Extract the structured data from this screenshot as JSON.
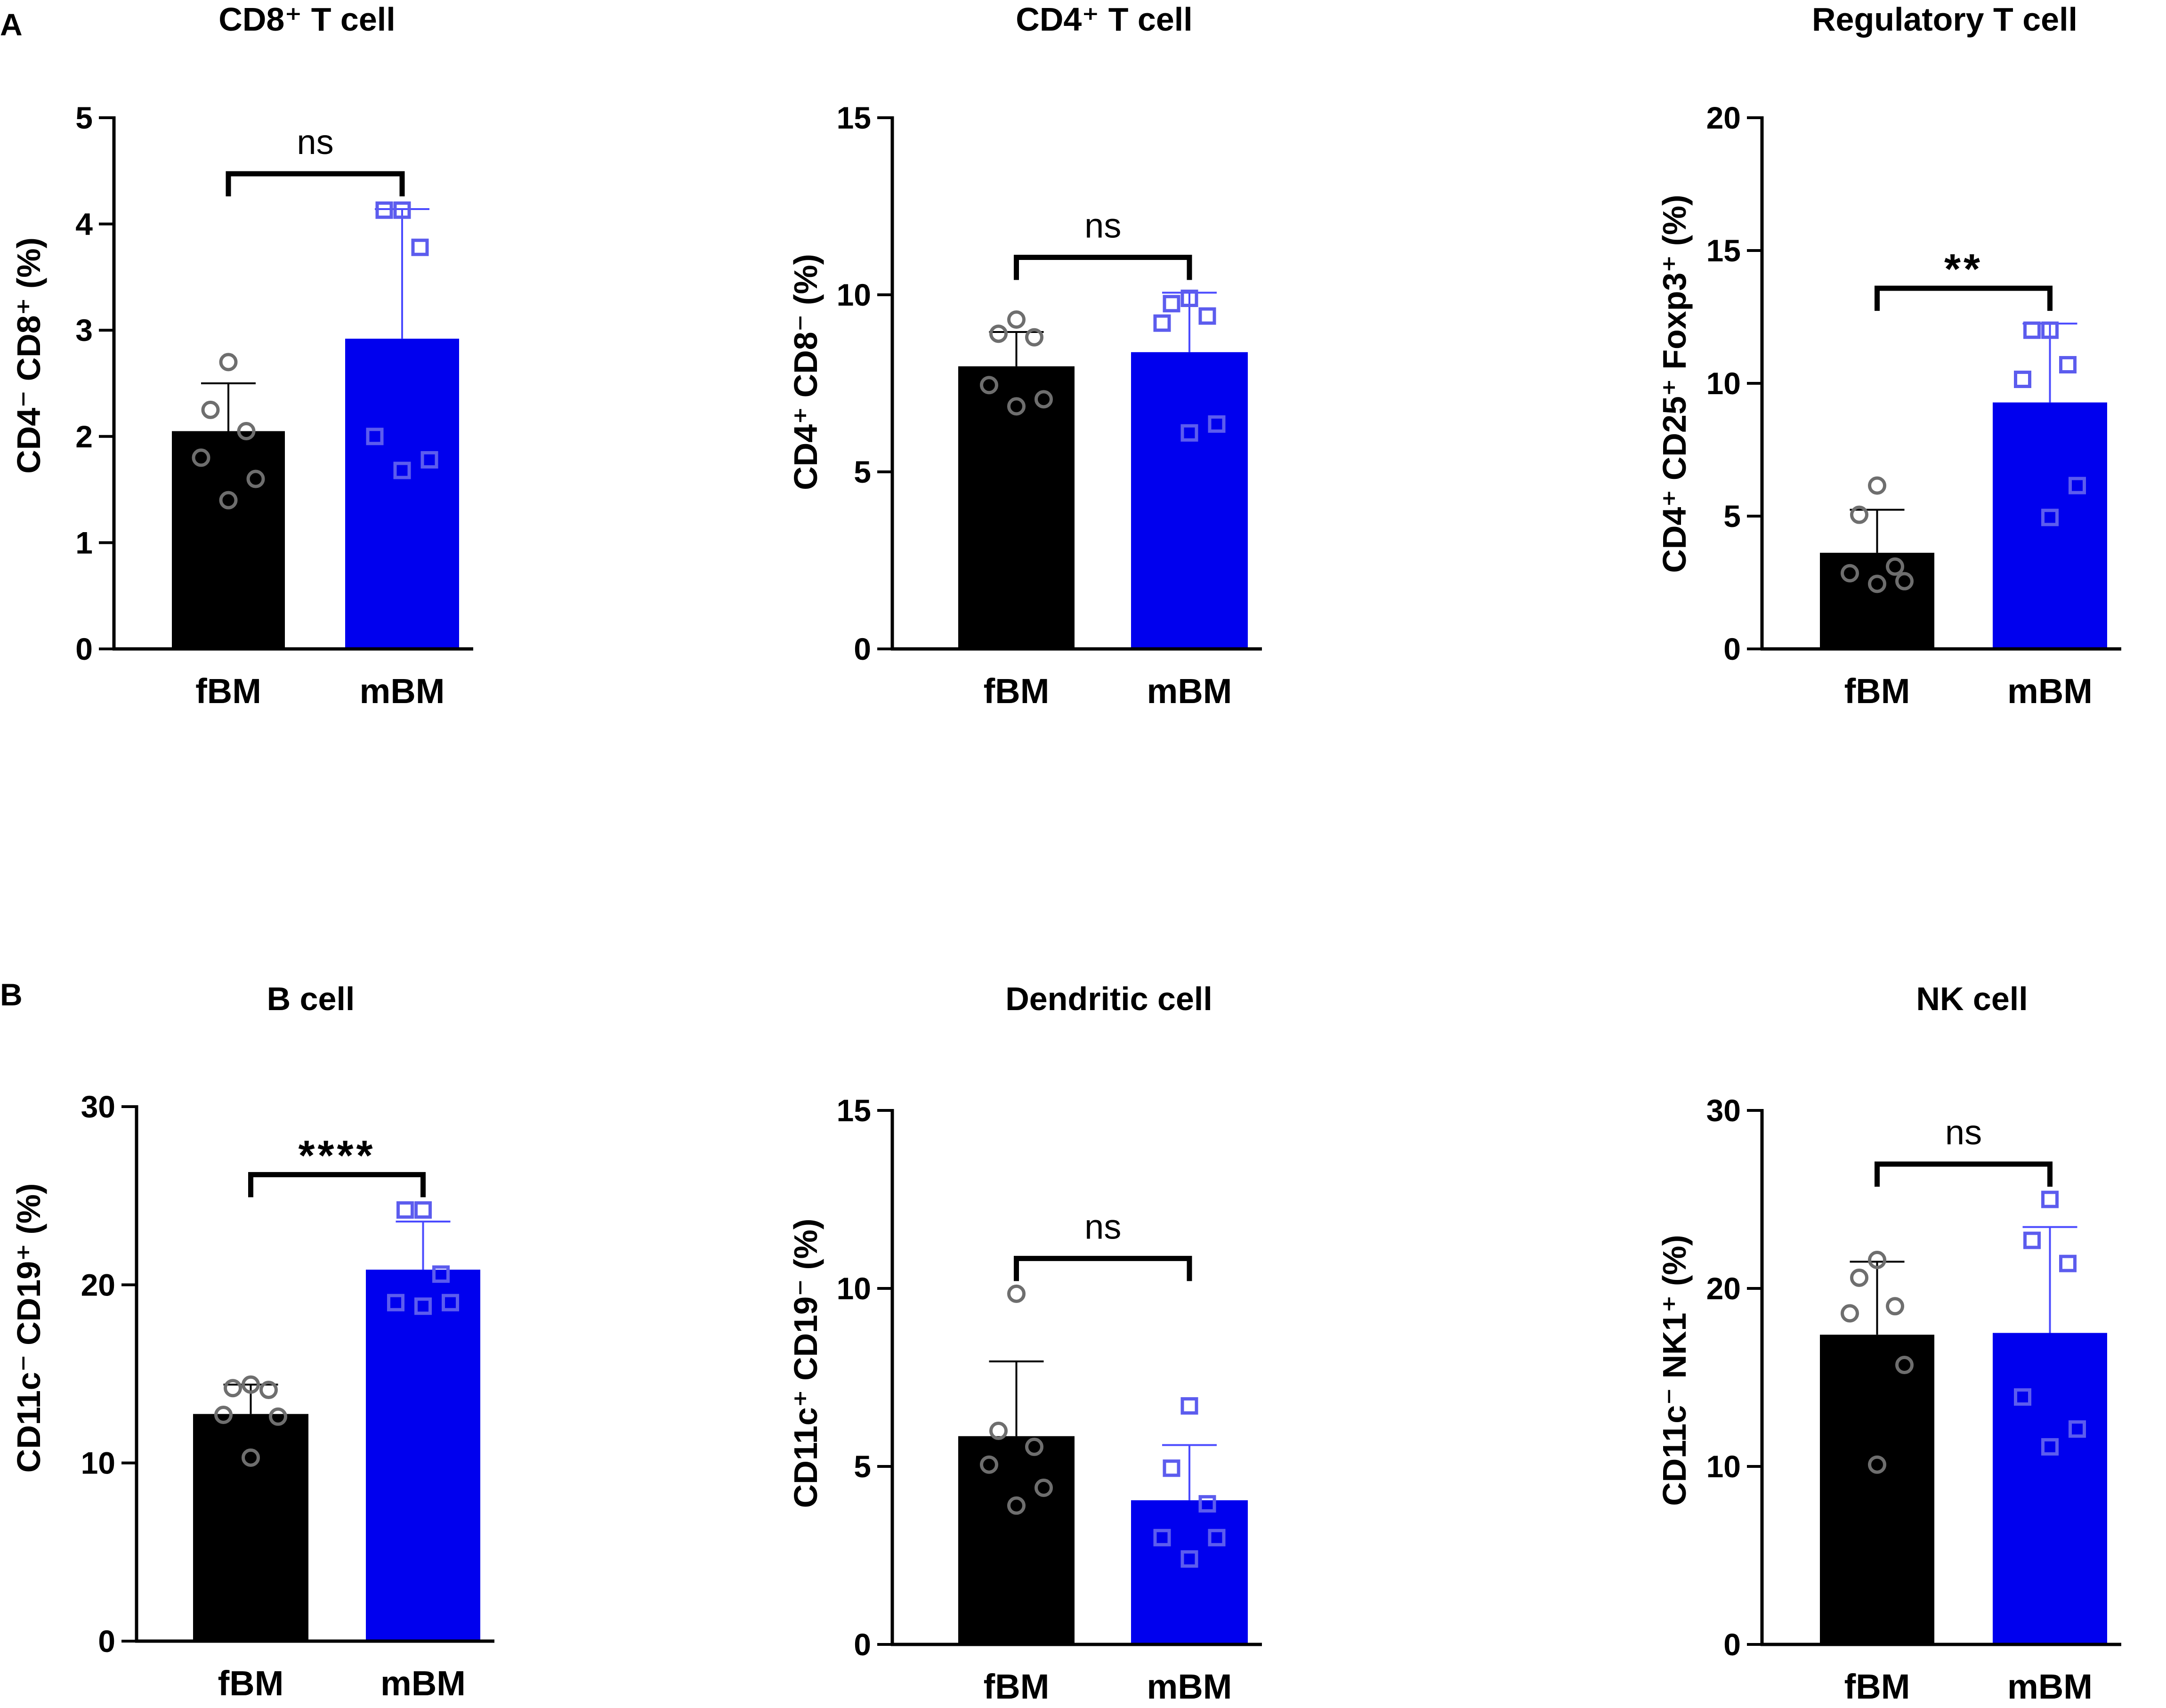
{
  "panel_labels": [
    "A",
    "B"
  ],
  "chart_data": [
    {
      "type": "bar",
      "title": "CD8⁺ T cell",
      "ylabel": [
        "CD4",
        "⁻",
        " CD8",
        "⁺",
        " (%)"
      ],
      "categories": [
        "fBM",
        "mBM"
      ],
      "ylim": [
        0,
        5
      ],
      "yticks": [
        0,
        1,
        2,
        3,
        4,
        5
      ],
      "series": [
        {
          "name": "fBM",
          "mean": 2.05,
          "sd": 0.45,
          "points": [
            2.7,
            2.25,
            2.05,
            1.8,
            1.6,
            1.4
          ]
        },
        {
          "name": "mBM",
          "mean": 2.92,
          "sd": 1.22,
          "points": [
            4.13,
            4.13,
            3.78,
            2.0,
            1.78,
            1.68
          ]
        }
      ],
      "significance": "ns"
    },
    {
      "type": "bar",
      "title": "CD4⁺ T cell",
      "ylabel": [
        "CD4",
        "⁺",
        " CD8",
        "⁻",
        " (%)"
      ],
      "categories": [
        "fBM",
        "mBM"
      ],
      "ylim": [
        0,
        15
      ],
      "yticks": [
        0,
        5,
        10,
        15
      ],
      "series": [
        {
          "name": "fBM",
          "mean": 7.98,
          "sd": 0.97,
          "points": [
            9.3,
            8.9,
            8.8,
            7.45,
            7.05,
            6.85
          ]
        },
        {
          "name": "mBM",
          "mean": 8.38,
          "sd": 1.68,
          "points": [
            9.9,
            9.75,
            9.4,
            9.2,
            6.35,
            6.1
          ]
        }
      ],
      "significance": "ns"
    },
    {
      "type": "bar",
      "title": "Regulatory T cell",
      "ylabel": [
        "CD4",
        "⁺",
        " CD25",
        "⁺",
        " Foxp3",
        "⁺",
        " (%)"
      ],
      "categories": [
        "fBM",
        "mBM"
      ],
      "ylim": [
        0,
        20
      ],
      "yticks": [
        0,
        5,
        10,
        15,
        20
      ],
      "series": [
        {
          "name": "fBM",
          "mean": 3.62,
          "sd": 1.62,
          "points": [
            6.15,
            5.05,
            3.1,
            2.85,
            2.55,
            2.45
          ]
        },
        {
          "name": "mBM",
          "mean": 9.28,
          "sd": 2.97,
          "points": [
            12.0,
            12.0,
            10.7,
            10.15,
            6.15,
            4.95
          ]
        }
      ],
      "significance": "**"
    },
    {
      "type": "bar",
      "title": "B cell",
      "ylabel": [
        "CD11c",
        "⁻",
        " CD19",
        "⁺",
        " (%)"
      ],
      "categories": [
        "fBM",
        "mBM"
      ],
      "ylim": [
        0,
        30
      ],
      "yticks": [
        0,
        10,
        20,
        30
      ],
      "series": [
        {
          "name": "fBM",
          "mean": 12.75,
          "sd": 1.65,
          "points": [
            14.4,
            14.2,
            14.1,
            12.7,
            12.6,
            10.3
          ]
        },
        {
          "name": "mBM",
          "mean": 20.85,
          "sd": 2.7,
          "points": [
            24.2,
            24.2,
            20.6,
            19.0,
            19.0,
            18.8
          ]
        }
      ],
      "significance": "****"
    },
    {
      "type": "bar",
      "title": "Dendritic cell",
      "ylabel": [
        "CD11c",
        "⁺",
        " CD19",
        "⁻",
        " (%)"
      ],
      "categories": [
        "fBM",
        "mBM"
      ],
      "ylim": [
        0,
        15
      ],
      "yticks": [
        0,
        5,
        10,
        15
      ],
      "series": [
        {
          "name": "fBM",
          "mean": 5.85,
          "sd": 2.1,
          "points": [
            9.85,
            6.0,
            5.55,
            5.05,
            4.4,
            3.9
          ]
        },
        {
          "name": "mBM",
          "mean": 4.05,
          "sd": 1.55,
          "points": [
            6.7,
            4.95,
            3.95,
            3.0,
            3.0,
            2.4
          ]
        }
      ],
      "significance": "ns"
    },
    {
      "type": "bar",
      "title": "NK cell",
      "ylabel": [
        "CD11c",
        "⁻",
        " NK1",
        "⁺",
        " (%)"
      ],
      "categories": [
        "fBM",
        "mBM"
      ],
      "ylim": [
        0,
        30
      ],
      "yticks": [
        0,
        10,
        20,
        30
      ],
      "series": [
        {
          "name": "fBM",
          "mean": 17.4,
          "sd": 4.1,
          "points": [
            21.6,
            20.6,
            19.0,
            18.6,
            15.7,
            10.1
          ]
        },
        {
          "name": "mBM",
          "mean": 17.5,
          "sd": 5.95,
          "points": [
            25.0,
            22.7,
            21.4,
            13.9,
            12.1,
            11.1
          ]
        }
      ],
      "significance": "ns"
    }
  ],
  "colors": {
    "fBM_bar": "#000000",
    "mBM_bar": "#0000ee",
    "fBM_point": "#6e6e6e",
    "mBM_point": "#5c5cee",
    "mBM_err": "#4b4bff"
  }
}
